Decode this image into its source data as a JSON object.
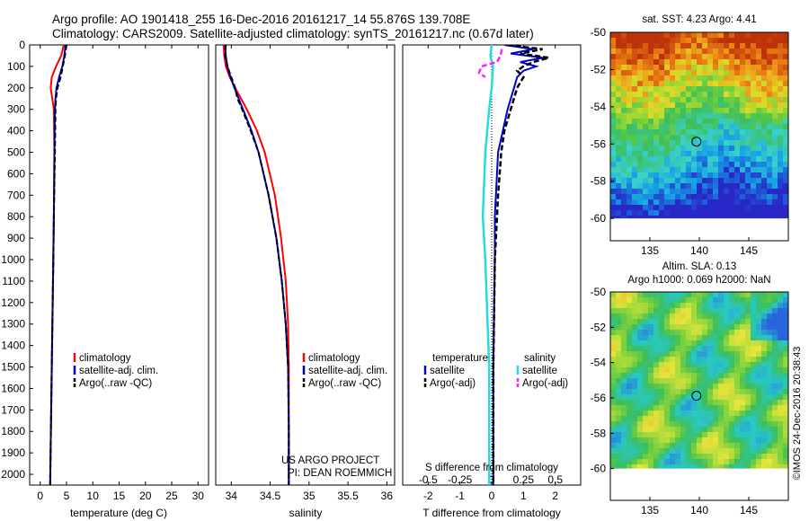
{
  "header": {
    "line1": "Argo profile: AO 1901418_255 16-Dec-2016 20161217_14 55.876S 139.708E",
    "line2": "Climatology: CARS2009. Satellite-adjusted climatology: synTS_20161217.nc (0.67d later)"
  },
  "credits": {
    "project": "US ARGO PROJECT",
    "pi": "PI: DEAN ROEMMICH",
    "copyright": "©IMOS 24-Dec-2016 20:38:43"
  },
  "colors": {
    "climatology": "#ff0000",
    "satellite_t": "#0000cc",
    "argo_t": "#000000",
    "satellite_s": "#22dddd",
    "argo_s": "#ff22ff",
    "map_circle": "#000000"
  },
  "chart_data": [
    {
      "type": "line",
      "id": "temperature",
      "xlabel": "temperature (deg C)",
      "ylabel": "",
      "xlim": [
        -2,
        32
      ],
      "ylim": [
        2050,
        0
      ],
      "xticks": [
        0,
        5,
        10,
        15,
        20,
        25,
        30
      ],
      "yticks": [
        0,
        100,
        200,
        300,
        400,
        500,
        600,
        700,
        800,
        900,
        1000,
        1100,
        1200,
        1300,
        1400,
        1500,
        1600,
        1700,
        1800,
        1900,
        2000
      ],
      "legend": [
        "climatology",
        "satellite-adj. clim.",
        "Argo(..raw -QC)"
      ],
      "series": [
        {
          "key": "climatology",
          "depth": [
            0,
            50,
            100,
            150,
            200,
            250,
            300,
            500,
            800,
            1000,
            1500,
            2050
          ],
          "values": [
            4.5,
            4.0,
            3.0,
            2.2,
            2.0,
            2.3,
            2.6,
            2.7,
            2.6,
            2.5,
            2.2,
            1.9
          ]
        },
        {
          "key": "satellite",
          "depth": [
            0,
            50,
            100,
            150,
            200,
            250,
            300,
            500,
            800,
            1000,
            1500,
            2050
          ],
          "values": [
            4.8,
            4.6,
            4.2,
            3.6,
            3.1,
            2.9,
            2.8,
            2.7,
            2.6,
            2.5,
            2.2,
            1.9
          ]
        },
        {
          "key": "argo",
          "depth": [
            0,
            50,
            100,
            150,
            200,
            250,
            300,
            500,
            800,
            1000,
            1500,
            2050
          ],
          "values": [
            5.0,
            4.7,
            4.3,
            3.9,
            3.3,
            3.0,
            2.9,
            2.8,
            2.6,
            2.5,
            2.2,
            1.9
          ]
        }
      ]
    },
    {
      "type": "line",
      "id": "salinity",
      "xlabel": "salinity",
      "ylabel": "",
      "xlim": [
        33.8,
        36.1
      ],
      "ylim": [
        2050,
        0
      ],
      "xticks": [
        34,
        34.5,
        35,
        35.5,
        36
      ],
      "legend": [
        "climatology",
        "satellite-adj. clim.",
        "Argo(..raw -QC)"
      ],
      "series": [
        {
          "key": "climatology",
          "depth": [
            0,
            50,
            100,
            150,
            200,
            300,
            400,
            500,
            700,
            900,
            1100,
            1300,
            1500,
            1800,
            2050
          ],
          "values": [
            33.9,
            33.91,
            33.93,
            33.98,
            34.05,
            34.2,
            34.33,
            34.43,
            34.56,
            34.64,
            34.7,
            34.73,
            34.74,
            34.74,
            34.74
          ]
        },
        {
          "key": "satellite",
          "depth": [
            0,
            50,
            100,
            150,
            200,
            300,
            400,
            500,
            700,
            900,
            1100,
            1300,
            1500,
            1800,
            2050
          ],
          "values": [
            33.92,
            33.93,
            33.95,
            33.99,
            34.04,
            34.15,
            34.26,
            34.35,
            34.48,
            34.58,
            34.65,
            34.7,
            34.73,
            34.74,
            34.74
          ]
        },
        {
          "key": "argo",
          "depth": [
            0,
            50,
            100,
            150,
            200,
            250,
            300,
            400,
            500,
            700,
            900,
            1100,
            1300,
            1500,
            1800,
            2050
          ],
          "values": [
            33.93,
            33.92,
            33.95,
            34.0,
            34.05,
            34.08,
            34.14,
            34.25,
            34.35,
            34.48,
            34.58,
            34.65,
            34.7,
            34.73,
            34.74,
            34.74
          ]
        }
      ]
    },
    {
      "type": "line",
      "id": "difference",
      "xlabel": "T difference from climatology",
      "ylabel": "",
      "title_top": "S difference from climatology",
      "xlim": [
        -2.8,
        2.8
      ],
      "ylim": [
        2050,
        0
      ],
      "xticks": [
        -2,
        -1,
        0,
        1,
        2
      ],
      "s_ticks": [
        -0.5,
        -0.25,
        0,
        0.25,
        0.5
      ],
      "s_tick_labels": [
        "-0.5",
        "-0.25",
        "0",
        "0.25",
        "0.5"
      ],
      "legend_t_title": "temperature",
      "legend_s_title": "salinity",
      "legend_t": [
        "satellite",
        "Argo(-adj)"
      ],
      "legend_s": [
        "satellite",
        "Argo(-adj)"
      ],
      "series": [
        {
          "key": "satellite_t",
          "depth": [
            0,
            20,
            40,
            60,
            80,
            100,
            120,
            150,
            200,
            300,
            500,
            800,
            1000,
            1500,
            2050
          ],
          "values": [
            0.4,
            1.3,
            0.6,
            1.6,
            0.9,
            1.4,
            1.0,
            0.8,
            0.7,
            0.5,
            0.2,
            0.1,
            0.1,
            0.05,
            0.05
          ]
        },
        {
          "key": "argo_t",
          "depth": [
            0,
            20,
            40,
            60,
            80,
            100,
            120,
            150,
            200,
            300,
            400,
            500,
            700,
            1000,
            1500,
            2050
          ],
          "values": [
            0.5,
            1.6,
            0.9,
            1.8,
            1.3,
            1.0,
            0.8,
            1.0,
            0.8,
            0.6,
            0.4,
            0.3,
            0.2,
            0.1,
            0.05,
            0.05
          ]
        },
        {
          "key": "satellite_s",
          "depth": [
            0,
            50,
            100,
            200,
            300,
            500,
            800,
            1000,
            1500,
            2050
          ],
          "values": [
            0.0,
            -0.01,
            0.01,
            0.0,
            -0.02,
            -0.05,
            -0.07,
            -0.05,
            -0.02,
            -0.02
          ]
        },
        {
          "key": "argo_s",
          "depth": [
            20,
            50,
            80,
            100,
            130,
            150
          ],
          "values": [
            0.08,
            0.07,
            0.04,
            -0.08,
            -0.1,
            -0.05
          ]
        }
      ]
    },
    {
      "type": "heatmap",
      "id": "sst_map",
      "title": "sat. SST: 4.23 Argo: 4.41",
      "xlim": [
        131,
        149
      ],
      "ylim": [
        -61.2,
        -50
      ],
      "xticks": [
        135,
        140,
        145
      ],
      "yticks": [
        -50,
        -52,
        -54,
        -56,
        -58,
        -60
      ],
      "profile_location": [
        139.708,
        -55.876
      ]
    },
    {
      "type": "heatmap",
      "id": "sla_map",
      "title_line1": "Altim. SLA: 0.13",
      "title_line2": "Argo h1000: 0.069 h2000: NaN",
      "xlim": [
        131,
        149
      ],
      "ylim": [
        -61.8,
        -50
      ],
      "xticks": [
        135,
        140,
        145
      ],
      "yticks": [
        -50,
        -52,
        -54,
        -56,
        -58,
        -60
      ],
      "profile_location": [
        139.708,
        -55.876
      ]
    }
  ]
}
